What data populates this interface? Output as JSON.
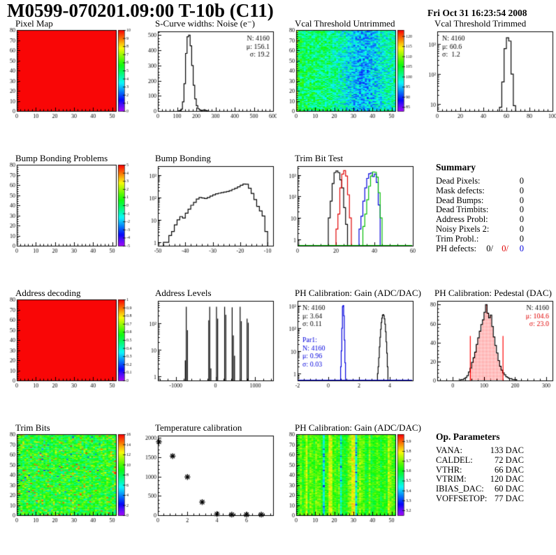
{
  "header": {
    "title": "M0599-070201.09:00 T-10b (C11)",
    "date": "Fri Oct 31 16:23:54 2008"
  },
  "colors": {
    "accent_red": "#e00000",
    "accent_blue": "#0000dd",
    "hist_black": "#000000",
    "hist_green": "#00bb00"
  },
  "summary": {
    "title": "Summary",
    "rows": [
      {
        "label": "Dead Pixels:",
        "value": "0"
      },
      {
        "label": "Mask defects:",
        "value": "0"
      },
      {
        "label": "Dead Bumps:",
        "value": "0"
      },
      {
        "label": "Dead Trimbits:",
        "value": "0"
      },
      {
        "label": "Address Probl:",
        "value": "0"
      },
      {
        "label": "Noisy Pixels 2:",
        "value": "0"
      },
      {
        "label": "Trim Probl.:",
        "value": "0"
      }
    ],
    "ph": {
      "label": "PH defects:",
      "black": "0/",
      "red": "0/",
      "blue": "0"
    }
  },
  "op_parameters": {
    "title": "Op. Parameters",
    "rows": [
      {
        "label": "VANA:",
        "value": "133 DAC"
      },
      {
        "label": "CALDEL:",
        "value": "72 DAC"
      },
      {
        "label": "VTHR:",
        "value": "66 DAC"
      },
      {
        "label": "VTRIM:",
        "value": "120 DAC"
      },
      {
        "label": "IBIAS_DAC:",
        "value": "60 DAC"
      },
      {
        "label": "VOFFSETOP:",
        "value": "77 DAC"
      }
    ]
  },
  "chart_data": [
    {
      "type": "map2d",
      "title": "Pixel Map",
      "pattern": "uniform",
      "uniform_z": 10,
      "xlim": [
        0,
        52
      ],
      "ylim": [
        0,
        80
      ],
      "xticks": [
        0,
        10,
        20,
        30,
        40,
        50
      ],
      "yticks": [
        0,
        10,
        20,
        30,
        40,
        50,
        60,
        70,
        80
      ],
      "zlim": [
        0,
        10
      ],
      "colorbar_ticks": [
        [
          10,
          "10"
        ],
        [
          9,
          "9"
        ],
        [
          8,
          "8"
        ],
        [
          7,
          "7"
        ],
        [
          6,
          "6"
        ],
        [
          5,
          "5"
        ],
        [
          4,
          "4"
        ],
        [
          3,
          "3"
        ],
        [
          2,
          "2"
        ],
        [
          1,
          "1"
        ],
        [
          0,
          "0"
        ]
      ]
    },
    {
      "type": "hist",
      "title": "S-Curve widths: Noise (e⁻)",
      "yscale": "linear",
      "xlim": [
        0,
        600
      ],
      "ylim": [
        0,
        525
      ],
      "xticks": [
        0,
        100,
        200,
        300,
        400,
        500,
        600
      ],
      "yticks": [
        0,
        100,
        200,
        300,
        400,
        500
      ],
      "series": [
        {
          "color": "#000000",
          "x0": 104,
          "binw": 8,
          "bins": [
            1,
            3,
            12,
            60,
            180,
            380,
            490,
            500,
            430,
            300,
            170,
            80,
            35,
            15,
            6,
            3,
            5,
            8,
            3,
            1
          ]
        }
      ],
      "stats": {
        "pos": "tr",
        "lines": [
          {
            "text": "N: 4160",
            "color": "#000000"
          },
          {
            "text": "μ: 156.1",
            "color": "#000000"
          },
          {
            "text": "σ: 19.2",
            "color": "#000000"
          }
        ]
      }
    },
    {
      "type": "map2d",
      "title": "Vcal Threshold Untrimmed",
      "pattern": "noise",
      "base": 103,
      "spread": 5.5,
      "gradient": -2.5,
      "blob": {
        "x": 34,
        "amp": -6.5,
        "w": 8
      },
      "edge": 9,
      "xlim": [
        0,
        52
      ],
      "ylim": [
        0,
        80
      ],
      "xticks": [
        0,
        10,
        20,
        30,
        40,
        50
      ],
      "yticks": [
        0,
        10,
        20,
        30,
        40,
        50,
        60,
        70,
        80
      ],
      "zlim": [
        83,
        123
      ],
      "colorbar_ticks": [
        [
          120,
          "120"
        ],
        [
          115,
          "115"
        ],
        [
          110,
          "110"
        ],
        [
          105,
          "105"
        ],
        [
          100,
          "100"
        ],
        [
          95,
          "95"
        ],
        [
          90,
          "90"
        ],
        [
          85,
          "85"
        ]
      ]
    },
    {
      "type": "hist",
      "title": "Vcal Threshold Trimmed",
      "yscale": "log",
      "xlim": [
        0,
        100
      ],
      "ylim": [
        6,
        2600
      ],
      "xticks": [
        0,
        20,
        40,
        60,
        80,
        100
      ],
      "ytick_exps": [
        1,
        2,
        3
      ],
      "series": [
        {
          "color": "#000000",
          "x0": 54,
          "binw": 2,
          "bins": [
            8,
            55,
            700,
            1600,
            1250,
            100,
            9
          ]
        }
      ],
      "stats": {
        "pos": "tl",
        "lines": [
          {
            "text": "N: 4160",
            "color": "#000000"
          },
          {
            "text": "μ: 60.6",
            "color": "#000000"
          },
          {
            "text": "σ:  1.2",
            "color": "#000000"
          }
        ]
      }
    },
    {
      "type": "map2d",
      "title": "Bump Bonding Problems",
      "pattern": "empty",
      "xlim": [
        0,
        52
      ],
      "ylim": [
        0,
        80
      ],
      "xticks": [
        0,
        10,
        20,
        30,
        40,
        50
      ],
      "yticks": [
        0,
        10,
        20,
        30,
        40,
        50,
        60,
        70,
        80
      ],
      "zlim": [
        -5,
        5
      ],
      "colorbar_ticks": [
        [
          5,
          "5"
        ],
        [
          4,
          "4"
        ],
        [
          3,
          "3"
        ],
        [
          2,
          "2"
        ],
        [
          1,
          "1"
        ],
        [
          0,
          "0"
        ],
        [
          -1,
          "-1"
        ],
        [
          -2,
          "-2"
        ],
        [
          -3,
          "-3"
        ],
        [
          -4,
          "-4"
        ],
        [
          -5,
          "-5"
        ]
      ]
    },
    {
      "type": "hist",
      "title": "Bump Bonding",
      "yscale": "log",
      "xlim": [
        -50,
        -8
      ],
      "ylim": [
        0.7,
        2500
      ],
      "xticks": [
        -50,
        -40,
        -30,
        -20,
        -10
      ],
      "ytick_exps": [
        0,
        1,
        2,
        3
      ],
      "series": [
        {
          "color": "#000000",
          "x0": -48,
          "binw": 1,
          "bins": [
            1,
            1,
            2,
            3,
            6,
            10,
            14,
            12,
            20,
            30,
            45,
            60,
            85,
            100,
            95,
            90,
            100,
            115,
            130,
            145,
            155,
            165,
            175,
            185,
            200,
            230,
            260,
            300,
            350,
            400,
            390,
            260,
            150,
            80,
            40,
            25,
            15,
            3
          ]
        }
      ]
    },
    {
      "type": "hist",
      "title": "Trim Bit Test",
      "yscale": "log",
      "xlim": [
        0,
        60
      ],
      "ylim": [
        0.5,
        2600
      ],
      "xticks": [
        0,
        20,
        40,
        60
      ],
      "ytick_exps": [
        0,
        1,
        2,
        3
      ],
      "series": [
        {
          "color": "#000000",
          "x0": 16,
          "binw": 1,
          "bins": [
            10,
            60,
            400,
            1300,
            1550,
            1300,
            600,
            250,
            30,
            5
          ]
        },
        {
          "color": "#e00000",
          "x0": 20,
          "binw": 1,
          "bins": [
            3,
            15,
            250,
            1100,
            1600,
            900,
            120,
            10
          ],
          "baseline": true
        },
        {
          "color": "#0000dd",
          "x0": 32,
          "binw": 1,
          "bins": [
            3,
            12,
            60,
            250,
            700,
            1150,
            1250,
            850,
            1100,
            450,
            40
          ],
          "baseline": true
        },
        {
          "color": "#00bb00",
          "x0": 34,
          "binw": 1,
          "bins": [
            4,
            15,
            70,
            300,
            900,
            1400,
            1350,
            800,
            150,
            10
          ],
          "baseline": true
        }
      ]
    },
    {
      "type": "map2d",
      "title": "Address decoding",
      "pattern": "uniform",
      "uniform_z": 1,
      "xlim": [
        0,
        52
      ],
      "ylim": [
        0,
        80
      ],
      "xticks": [
        0,
        10,
        20,
        30,
        40,
        50
      ],
      "yticks": [
        0,
        10,
        20,
        30,
        40,
        50,
        60,
        70,
        80
      ],
      "zlim": [
        0,
        1
      ],
      "colorbar_ticks": [
        [
          1,
          "1"
        ],
        [
          0.9,
          "0.9"
        ],
        [
          0.8,
          "0.8"
        ],
        [
          0.7,
          "0.7"
        ],
        [
          0.6,
          "0.6"
        ],
        [
          0.5,
          "0.5"
        ],
        [
          0.4,
          "0.4"
        ],
        [
          0.3,
          "0.3"
        ],
        [
          0.2,
          "0.2"
        ],
        [
          0.1,
          "0.1"
        ],
        [
          0,
          "0"
        ]
      ]
    },
    {
      "type": "spikes",
      "title": "Address Levels",
      "yscale": "log",
      "xlim": [
        -1450,
        1450
      ],
      "ylim": [
        0.7,
        700
      ],
      "xticks": [
        -1000,
        0,
        1000
      ],
      "ytick_exps": [
        0,
        1,
        2
      ],
      "spike_w": 16,
      "spikes": [
        [
          -760,
          4
        ],
        [
          -735,
          420
        ],
        [
          -705,
          55
        ],
        [
          -170,
          130
        ],
        [
          -145,
          420
        ],
        [
          -115,
          2
        ],
        [
          25,
          420
        ],
        [
          55,
          150
        ],
        [
          230,
          420
        ],
        [
          260,
          210
        ],
        [
          420,
          400
        ],
        [
          450,
          35
        ],
        [
          480,
          6
        ],
        [
          620,
          420
        ],
        [
          650,
          120
        ],
        [
          795,
          150
        ],
        [
          825,
          105
        ]
      ]
    },
    {
      "type": "hist",
      "title": "PH Calibration: Gain (ADC/DAC)",
      "yscale": "log",
      "xlim": [
        -2,
        5.5
      ],
      "ylim": [
        0.5,
        1600
      ],
      "xticks": [
        -2,
        0,
        2,
        4
      ],
      "ytick_exps": [
        0,
        1,
        2,
        3
      ],
      "series": [
        {
          "color": "#000000",
          "x0": 3.2,
          "binw": 0.04,
          "bins": [
            1,
            2,
            5,
            15,
            40,
            90,
            180,
            280,
            380,
            400,
            360,
            260,
            150,
            70,
            25,
            8,
            2
          ]
        },
        {
          "color": "#0000dd",
          "x0": 0.8,
          "binw": 0.04,
          "bins": [
            2,
            10,
            100,
            900,
            1000,
            350,
            30,
            3
          ],
          "baseline": true
        }
      ],
      "stats": {
        "pos": "tl",
        "lines": [
          {
            "text": "N: 4160",
            "color": "#000000"
          },
          {
            "text": "μ: 3.64",
            "color": "#000000"
          },
          {
            "text": "σ: 0.11",
            "color": "#000000"
          }
        ]
      },
      "stats2": {
        "pos": "ml",
        "lines": [
          {
            "text": "Par1:",
            "color": "#0000dd"
          },
          {
            "text": "N: 4160",
            "color": "#0000dd"
          },
          {
            "text": "μ: 0.96",
            "color": "#0000dd"
          },
          {
            "text": "σ: 0.03",
            "color": "#0000dd"
          }
        ]
      }
    },
    {
      "type": "hist",
      "title": "PH Calibration: Pedestal (DAC)",
      "yscale": "linear",
      "xlim": [
        -50,
        320
      ],
      "ylim": [
        0,
        84
      ],
      "xticks": [
        0,
        100,
        200,
        300
      ],
      "yticks": [
        0,
        20,
        40,
        60,
        80
      ],
      "series": [
        {
          "color": "#000000",
          "x0": 25,
          "binw": 5,
          "bins": [
            1,
            1,
            2,
            3,
            5,
            9,
            13,
            19,
            24,
            30,
            38,
            45,
            52,
            59,
            64,
            72,
            80,
            71,
            66,
            69,
            57,
            46,
            37,
            29,
            21,
            15,
            11,
            8,
            6,
            4,
            3,
            2,
            2,
            1,
            1,
            1
          ],
          "fill": {
            "color": "#ff0000",
            "from": 55,
            "to": 160
          }
        }
      ],
      "vlines": [
        {
          "x": 55,
          "y": 47,
          "color": "#ff0000"
        },
        {
          "x": 160,
          "y": 47,
          "color": "#ff0000"
        }
      ],
      "stats": {
        "pos": "tr",
        "lines": [
          {
            "text": "N: 4160",
            "color": "#000000"
          },
          {
            "text": "μ: 104.6",
            "color": "#e00000"
          },
          {
            "text": "σ: 23.0",
            "color": "#e00000"
          }
        ]
      }
    },
    {
      "type": "map2d",
      "title": "Trim Bits",
      "pattern": "noise",
      "base": 9,
      "spread": 2.2,
      "speckle": {
        "p": 0.07,
        "amp": 4.5
      },
      "xlim": [
        0,
        52
      ],
      "ylim": [
        0,
        80
      ],
      "xticks": [
        0,
        10,
        20,
        30,
        40,
        50
      ],
      "yticks": [
        0,
        10,
        20,
        30,
        40,
        50,
        60,
        70,
        80
      ],
      "zlim": [
        0,
        16
      ],
      "colorbar_ticks": [
        [
          16,
          "16"
        ],
        [
          14,
          "14"
        ],
        [
          12,
          "12"
        ],
        [
          10,
          "10"
        ],
        [
          8,
          "8"
        ],
        [
          6,
          "6"
        ],
        [
          4,
          "4"
        ],
        [
          2,
          "2"
        ],
        [
          0,
          "0"
        ]
      ]
    },
    {
      "type": "scatter",
      "title": "Temperature calibration",
      "yscale": "linear",
      "xlim": [
        0,
        7.8
      ],
      "ylim": [
        0,
        2060
      ],
      "xticks": [
        0,
        2,
        4,
        6
      ],
      "yticks": [
        0,
        500,
        1000,
        1500,
        2000
      ],
      "marker": "asterisk",
      "points": [
        [
          0.07,
          1900
        ],
        [
          1,
          1530
        ],
        [
          2,
          990
        ],
        [
          3,
          340
        ],
        [
          4,
          30
        ],
        [
          5,
          15
        ],
        [
          6,
          15
        ],
        [
          7,
          15
        ]
      ]
    },
    {
      "type": "map2d",
      "title": "PH Calibration: Gain (ADC/DAC)",
      "pattern": "columns",
      "base": 3.66,
      "spread": 0.065,
      "col_spread": 0.06,
      "forced_cols": {
        "5": 0.09,
        "14": -0.2,
        "17": 0.12,
        "18": 0.1,
        "23": -0.17,
        "29": 0.13,
        "30": 0.12,
        "31": -0.2,
        "44": -0.06,
        "48": 0.08
      },
      "xlim": [
        0,
        52
      ],
      "ylim": [
        0,
        80
      ],
      "xticks": [
        0,
        10,
        20,
        30,
        40,
        50
      ],
      "yticks": [
        0,
        10,
        20,
        30,
        40,
        50,
        60,
        70,
        80
      ],
      "zlim": [
        3.15,
        3.97
      ],
      "colorbar_ticks": [
        [
          3.9,
          "3.9"
        ],
        [
          3.8,
          "3.8"
        ],
        [
          3.7,
          "3.7"
        ],
        [
          3.6,
          "3.6"
        ],
        [
          3.5,
          "3.5"
        ],
        [
          3.4,
          "3.4"
        ],
        [
          3.3,
          "3.3"
        ],
        [
          3.2,
          "3.2"
        ]
      ]
    }
  ]
}
